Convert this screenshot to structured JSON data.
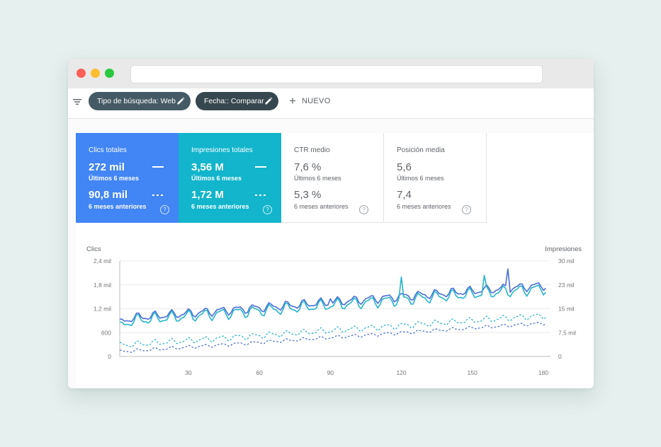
{
  "filters": {
    "chips": [
      {
        "label": "Tipo de búsqueda: Web"
      },
      {
        "label": "Fecha:: Comparar"
      }
    ],
    "new_label": "NUEVO"
  },
  "metrics": [
    {
      "title": "Clics totales",
      "value_current": "272 mil",
      "period_current": "Últimos 6 meses",
      "value_previous": "90,8 mil",
      "period_previous": "6 meses anteriores",
      "color": "#4285f4",
      "selected": true
    },
    {
      "title": "Impresiones totales",
      "value_current": "3,56 M",
      "period_current": "Últimos 6 meses",
      "value_previous": "1,72 M",
      "period_previous": "6 meses anteriores",
      "color": "#12b5cb",
      "selected": true
    },
    {
      "title": "CTR medio",
      "value_current": "7,6 %",
      "period_current": "Últimos 6 meses",
      "value_previous": "5,3 %",
      "period_previous": "6 meses anteriores",
      "selected": false
    },
    {
      "title": "Posición media",
      "value_current": "5,6",
      "period_current": "Últimos 6 meses",
      "value_previous": "7,4",
      "period_previous": "6 meses anteriores",
      "selected": false
    }
  ],
  "help_glyph": "?",
  "chart_data": {
    "type": "line",
    "ylabel_left": "Clics",
    "ylabel_right": "Impresiones",
    "yticks_left": [
      "0",
      "600",
      "1,2 mil",
      "1,8 mil",
      "2,4 mil"
    ],
    "yticks_right": [
      "0",
      "7,5 mil",
      "15 mil",
      "23 mil",
      "30 mil"
    ],
    "ylim_left": [
      0,
      2400
    ],
    "ylim_right": [
      0,
      30000
    ],
    "xticks": [
      "30",
      "60",
      "90",
      "120",
      "150",
      "180"
    ],
    "xtick_values": [
      30,
      60,
      90,
      120,
      150,
      180
    ],
    "xlim": [
      1,
      183
    ],
    "grid": true,
    "series": [
      {
        "metric": "Clics totales",
        "period": "Últimos 6 meses",
        "axis": "left",
        "style": "solid",
        "color": "#4a6ed8",
        "start": 950,
        "end": 1800,
        "amplitude": 160,
        "points": [
          [
            90,
            1450
          ],
          [
            165,
            2200
          ]
        ]
      },
      {
        "metric": "Impresiones totales",
        "period": "Últimos 6 meses",
        "axis": "right",
        "style": "solid",
        "color": "#26b5c9",
        "start": 11000,
        "end": 21500,
        "amplitude": 2600,
        "points": [
          [
            120,
            25000
          ],
          [
            155,
            25500
          ]
        ]
      },
      {
        "metric": "Clics totales",
        "period": "6 meses anteriores",
        "axis": "left",
        "style": "dashed",
        "color": "#4a6ed8",
        "start": 120,
        "end": 850,
        "amplitude": 60
      },
      {
        "metric": "Impresiones totales",
        "period": "6 meses anteriores",
        "axis": "right",
        "style": "dashed",
        "color": "#26b5c9",
        "start": 3500,
        "end": 13000,
        "amplitude": 1400
      }
    ]
  }
}
